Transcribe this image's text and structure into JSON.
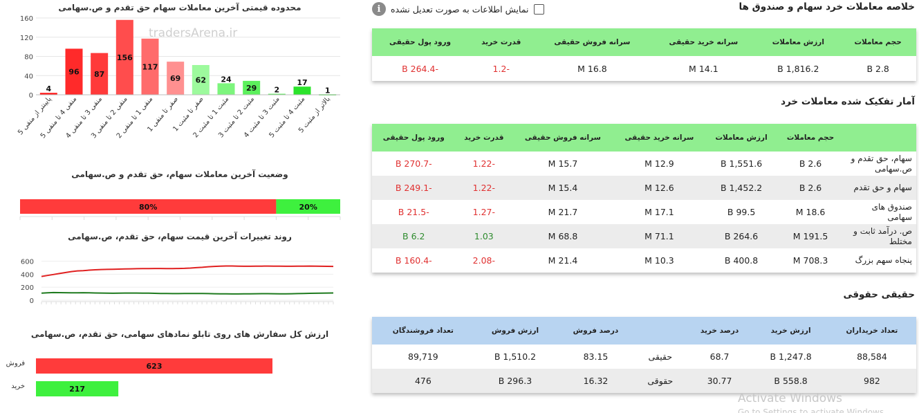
{
  "left": {
    "bar_chart_title": "محدوده قیمتی آخرین معاملات سهام حق تقدم و ص.سهامی",
    "watermark": "tradersArena.ir",
    "status_title": "وضعیت آخرین معاملات سهام، حق تقدم و ص.سهامی",
    "trend_title": "روند تغییرات آخرین قیمت سهام، حق تقدم، ص.سهامی",
    "orders_title": "ارزش کل سفارش های روی تابلو نمادهای سهامی، حق تقدم، ص.سهامی",
    "sell_label": "فروش",
    "buy_label": "خرید"
  },
  "right": {
    "summary_title": "خلاصه معاملات خرد سهام و صندوق ها",
    "checkbox_label": "نمایش اطلاعات به صورت تعدیل نشده",
    "summary_headers": [
      "حجم معاملات",
      "ارزش معاملات",
      "سرانه خرید حقیقی",
      "سرانه فروش حقیقی",
      "قدرت خرید",
      "ورود پول حقیقی"
    ],
    "summary_row": [
      "2.8 B",
      "1,816.2 B",
      "14.1 M",
      "16.8 M",
      "-1.2",
      "-264.4 B"
    ],
    "breakdown_title": "آمار تفکیک شده معاملات خرد",
    "breakdown_headers": [
      "",
      "حجم معاملات",
      "ارزش معاملات",
      "سرانه خرید حقیقی",
      "سرانه فروش حقیقی",
      "قدرت خرید",
      "ورود پول حقیقی"
    ],
    "breakdown_rows": [
      [
        "سهام، حق تقدم و ص.سهامی",
        "2.6 B",
        "1,551.6 B",
        "12.9 M",
        "15.7 M",
        "-1.22",
        "-270.7 B"
      ],
      [
        "سهام و حق تقدم",
        "2.6 B",
        "1,452.2 B",
        "12.6 M",
        "15.4 M",
        "-1.22",
        "-249.1 B"
      ],
      [
        "صندوق های سهامی",
        "18.6 M",
        "99.5 B",
        "17.1 M",
        "21.7 M",
        "-1.27",
        "-21.5 B"
      ],
      [
        "ص. درآمد ثابت و مختلط",
        "191.5 M",
        "264.6 B",
        "71.1 M",
        "68.8 M",
        "1.03",
        "6.2 B"
      ],
      [
        "پنجاه سهم بزرگ",
        "708.3 M",
        "400.8 B",
        "10.3 M",
        "21.4 M",
        "-2.08",
        "-160.4 B"
      ]
    ],
    "hh_title": "حقیقی حقوقی",
    "hh_headers": [
      "تعداد خریداران",
      "ارزش خرید",
      "درصد خرید",
      "",
      "درصد فروش",
      "ارزش فروش",
      "تعداد فروشندگان"
    ],
    "hh_rows": [
      [
        "88,584",
        "1,247.8 B",
        "68.7",
        "حقیقی",
        "83.15",
        "1,510.2 B",
        "89,719"
      ],
      [
        "982",
        "558.8 B",
        "30.77",
        "حقوقی",
        "16.32",
        "296.3 B",
        "476"
      ]
    ],
    "activate_line1": "Activate Windows",
    "activate_line2": "Go to Settings to activate Windows."
  },
  "chart_data": [
    {
      "type": "bar",
      "title": "محدوده قیمتی آخرین معاملات سهام حق تقدم و ص.سهامی",
      "categories": [
        "پایینتر از منفی 5",
        "منفی 4 تا منفی 5",
        "منفی 3 تا منفی 4",
        "منفی 2 تا منفی 3",
        "منفی 1 تا منفی 2",
        "صفر تا منفی 1",
        "صفر تا مثبت 1",
        "مثبت 1 تا مثبت 2",
        "مثبت 2 تا مثبت 3",
        "مثبت 3 تا مثبت 4",
        "مثبت 4 تا مثبت 5",
        "بالاتر از مثبت 5"
      ],
      "values": [
        4,
        96,
        87,
        156,
        117,
        69,
        62,
        24,
        29,
        2,
        17,
        1
      ],
      "colors": [
        "#ff1a1a",
        "#ff2a2a",
        "#ff3a3a",
        "#ff4d4d",
        "#ff6b6b",
        "#ff9090",
        "#9dfa9d",
        "#7df57d",
        "#5cf05c",
        "#47eb47",
        "#2be32b",
        "#19dc19"
      ],
      "yticks": [
        0,
        40,
        80,
        120,
        160
      ],
      "ylim": [
        0,
        160
      ]
    },
    {
      "type": "bar",
      "title": "وضعیت آخرین معاملات سهام، حق تقدم و ص.سهامی",
      "stacked": true,
      "series": [
        {
          "label": "80%",
          "value": 80,
          "color": "#ff3b3b"
        },
        {
          "label": "20%",
          "value": 20,
          "color": "#3ef03e"
        }
      ]
    },
    {
      "type": "line",
      "title": "روند تغییرات آخرین قیمت سهام، حق تقدم، ص.سهامی",
      "yticks": [
        0,
        200,
        400,
        600
      ],
      "ylim": [
        0,
        680
      ],
      "series": [
        {
          "color": "#e02020",
          "values": [
            365,
            380,
            395,
            410,
            425,
            440,
            450,
            455,
            462,
            468,
            472,
            474,
            476,
            478,
            480,
            482,
            485,
            486,
            487,
            488,
            488,
            487,
            487,
            488,
            490,
            494,
            500,
            506,
            514,
            520,
            524,
            526,
            526,
            524,
            522,
            522,
            523,
            524,
            525,
            524,
            523,
            522,
            522,
            523,
            524,
            525,
            524,
            522,
            521,
            520
          ]
        },
        {
          "color": "#1e7a1e",
          "values": [
            108,
            115,
            118,
            117,
            116,
            114,
            115,
            116,
            114,
            112,
            110,
            108,
            107,
            108,
            110,
            111,
            110,
            109,
            108,
            106,
            104,
            103,
            102,
            102,
            103,
            104,
            104,
            103,
            102,
            100,
            99,
            98,
            97,
            97,
            98,
            99,
            100,
            101,
            101,
            100,
            99,
            99,
            100,
            102,
            104,
            106,
            107,
            108,
            110,
            112
          ]
        }
      ]
    },
    {
      "type": "bar",
      "title": "ارزش کل سفارش های روی تابلو نمادهای سهامی، حق تقدم، ص.سهامی",
      "orientation": "horizontal",
      "categories": [
        "فروش",
        "خرید"
      ],
      "values": [
        623,
        217
      ],
      "colors": [
        "#ff3b3b",
        "#3ef03e"
      ]
    }
  ]
}
